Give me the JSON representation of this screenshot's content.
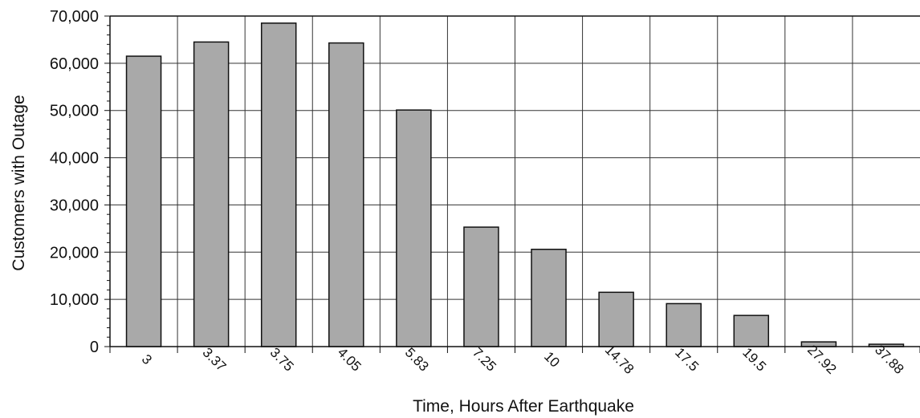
{
  "chart_data": {
    "type": "bar",
    "title": "",
    "xlabel": "Time, Hours After Earthquake",
    "ylabel": "Customers with Outage",
    "categories": [
      "3",
      "3.37",
      "3.75",
      "4.05",
      "5.83",
      "7.25",
      "10",
      "14.78",
      "17.5",
      "19.5",
      "27.92",
      "37.88"
    ],
    "values": [
      61500,
      64500,
      68500,
      64300,
      50100,
      25300,
      20600,
      11500,
      9100,
      6600,
      1000,
      500
    ],
    "ylim": [
      0,
      70000
    ],
    "yticks": [
      "0",
      "10,000",
      "20,000",
      "30,000",
      "40,000",
      "50,000",
      "60,000",
      "70,000"
    ],
    "ytick_values": [
      0,
      10000,
      20000,
      30000,
      40000,
      50000,
      60000,
      70000
    ],
    "grid": true,
    "legend": "none",
    "colors": {
      "bar_fill": "#a9a9a9",
      "bar_stroke": "#111111",
      "grid": "#333333",
      "axis": "#111111",
      "text": "#111111"
    }
  }
}
